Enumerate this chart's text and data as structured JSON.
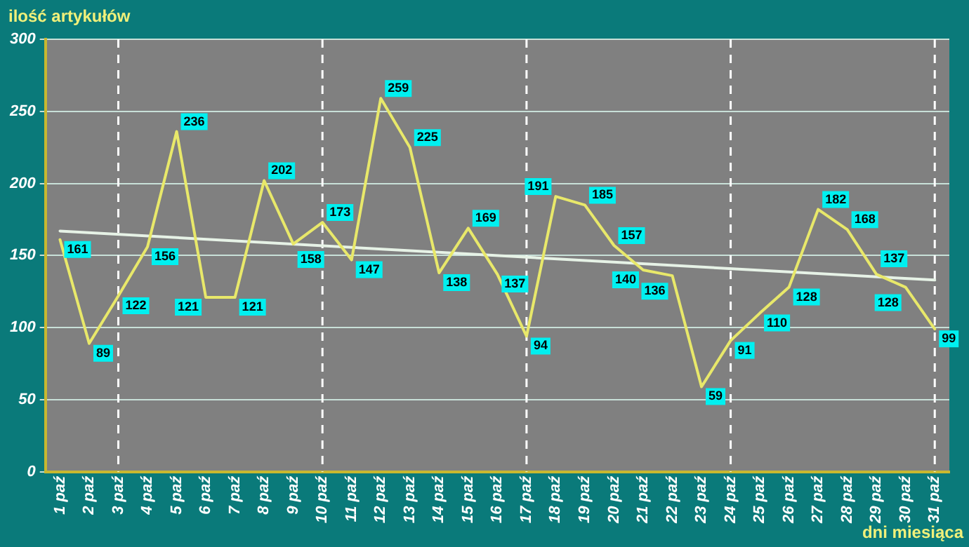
{
  "chart_data": {
    "type": "line",
    "ylabel": "ilość artykułów",
    "xlabel": "dni miesiąca",
    "categories": [
      "1 paź",
      "2 paź",
      "3 paź",
      "4 paź",
      "5 paź",
      "6 paź",
      "7 paź",
      "8 paź",
      "9 paź",
      "10 paź",
      "11 paź",
      "12 paź",
      "13 paź",
      "14 paź",
      "15 paź",
      "16 paź",
      "17 paź",
      "18 paź",
      "19 paź",
      "20 paź",
      "21 paź",
      "22 paź",
      "23 paź",
      "24 paź",
      "25 paź",
      "26 paź",
      "27 paź",
      "28 paź",
      "29 paź",
      "30 paź",
      "31 paź"
    ],
    "series": [
      {
        "color": "#e8e86a",
        "values": [
          161,
          89,
          122,
          156,
          236,
          121,
          121,
          202,
          158,
          173,
          147,
          259,
          225,
          138,
          169,
          137,
          94,
          191,
          185,
          157,
          140,
          136,
          59,
          91,
          110,
          128,
          182,
          168,
          137,
          128,
          99
        ],
        "value_labels": [
          "161",
          "89",
          "122",
          "156",
          "236",
          "121",
          "121",
          "202",
          "158",
          "173",
          "147",
          "259",
          "225",
          "138",
          "169",
          "137",
          "94",
          "191",
          "185",
          "157",
          "140",
          "136",
          "59",
          "91",
          "110",
          "128",
          "182",
          "168",
          "137",
          "128",
          "99"
        ]
      },
      {
        "type": "line",
        "color": "#e6f2e6",
        "x": [
          "1 paź",
          "31 paź"
        ],
        "values": [
          167,
          133
        ]
      }
    ],
    "ylim": [
      0,
      300
    ],
    "yticks": [
      0,
      50,
      100,
      150,
      200,
      250,
      300
    ],
    "grid": "y",
    "marker": "none",
    "legend": false,
    "ref_lines": [
      {
        "axis": "x",
        "value": "3 paź",
        "color": "#ffffff",
        "line_style": "dashed"
      },
      {
        "axis": "x",
        "value": "10 paź",
        "color": "#ffffff",
        "line_style": "dashed"
      },
      {
        "axis": "x",
        "value": "17 paź",
        "color": "#ffffff",
        "line_style": "dashed"
      },
      {
        "axis": "x",
        "value": "24 paź",
        "color": "#ffffff",
        "line_style": "dashed"
      },
      {
        "axis": "x",
        "value": "31 paź",
        "color": "#ffffff",
        "line_style": "dashed"
      }
    ]
  }
}
